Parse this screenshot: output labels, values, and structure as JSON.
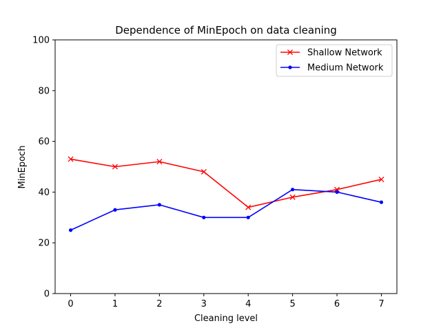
{
  "chart_data": {
    "type": "line",
    "title": "Dependence of MinEpoch on data cleaning",
    "xlabel": "Cleaning level",
    "ylabel": "MinEpoch",
    "x": [
      0,
      1,
      2,
      3,
      4,
      5,
      6,
      7
    ],
    "xticks": [
      "0",
      "1",
      "2",
      "3",
      "4",
      "5",
      "6",
      "7"
    ],
    "yticks": [
      "0",
      "20",
      "40",
      "60",
      "80",
      "100"
    ],
    "ylim": [
      0,
      100
    ],
    "xlim": [
      -0.35,
      7.35
    ],
    "grid": false,
    "legend_position": "top-right",
    "series": [
      {
        "name": "Shallow Network",
        "color": "#ff0000",
        "marker": "x",
        "values": [
          53,
          50,
          52,
          48,
          34,
          38,
          41,
          45
        ]
      },
      {
        "name": "Medium Network",
        "color": "#0000ff",
        "marker": "dot",
        "values": [
          25,
          33,
          35,
          30,
          30,
          41,
          40,
          36
        ]
      }
    ]
  }
}
